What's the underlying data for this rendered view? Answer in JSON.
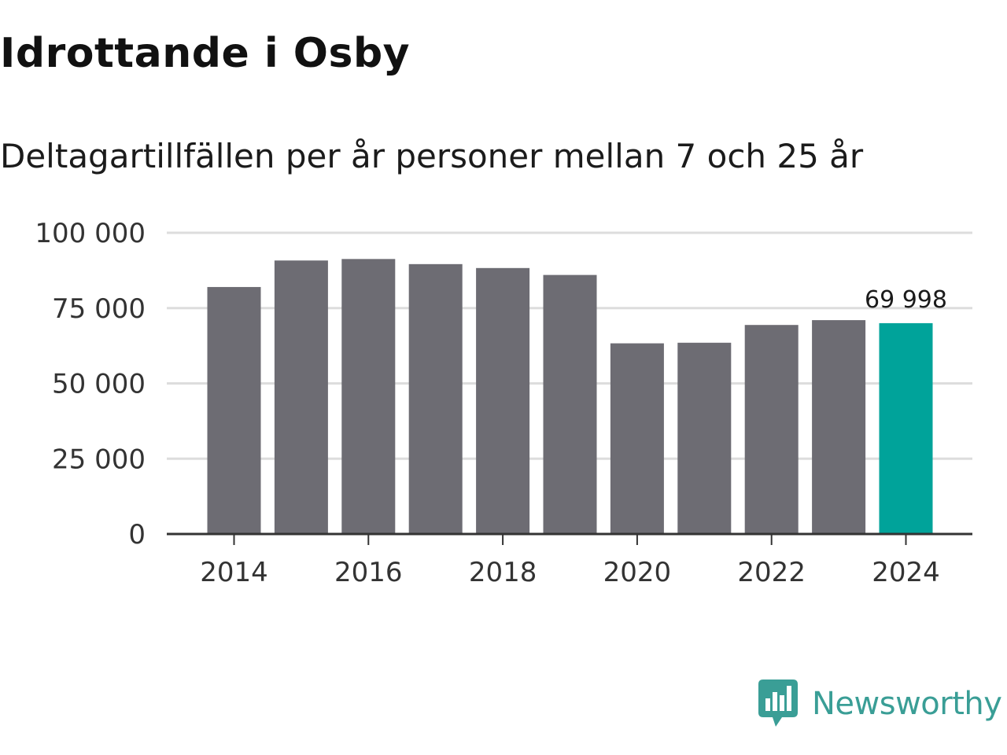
{
  "header": {
    "title": "Idrottande i Osby",
    "subtitle": "Deltagartillfällen per år personer mellan 7 och 25 år"
  },
  "brand": {
    "name": "Newsworthy",
    "icon": "newsworthy-logo-icon",
    "color": "#3a9e96"
  },
  "colors": {
    "bar": "#6d6c73",
    "highlight": "#00a39a",
    "grid": "#dddddd",
    "axis": "#333333"
  },
  "chart_data": {
    "type": "bar",
    "title": "Idrottande i Osby",
    "subtitle": "Deltagartillfällen per år personer mellan 7 och 25 år",
    "xlabel": "",
    "ylabel": "",
    "categories": [
      "2014",
      "2015",
      "2016",
      "2017",
      "2018",
      "2019",
      "2020",
      "2021",
      "2022",
      "2023",
      "2024"
    ],
    "values": [
      82000,
      90800,
      91300,
      89600,
      88300,
      86000,
      63300,
      63500,
      69400,
      71000,
      69998
    ],
    "highlight_index": 10,
    "ylim": [
      0,
      100000
    ],
    "yticks": [
      0,
      25000,
      50000,
      75000,
      100000
    ],
    "ytick_labels": [
      "0",
      "25 000",
      "50 000",
      "75 000",
      "100 000"
    ],
    "xticks": [
      "2014",
      "2016",
      "2018",
      "2020",
      "2022",
      "2024"
    ],
    "data_labels": [
      {
        "category": "2024",
        "text": "69 998"
      }
    ],
    "grid": true
  }
}
